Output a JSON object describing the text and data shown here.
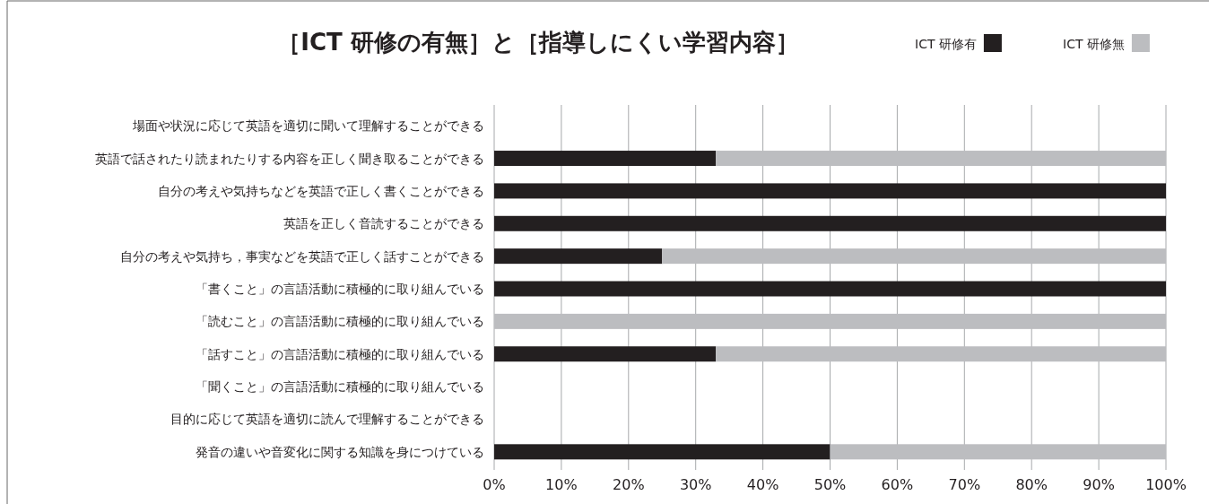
{
  "chart_data": {
    "type": "bar",
    "orientation": "horizontal",
    "stacked": true,
    "title": "［ICT 研修の有無］と［指導しにくい学習内容］",
    "categories": [
      "場面や状況に応じて英語を適切に聞いて理解することができる",
      "英語で話されたり読まれたりする内容を正しく聞き取ることができる",
      "自分の考えや気持ちなどを英語で正しく書くことができる",
      "英語を正しく音読することができる",
      "自分の考えや気持ち，事実などを英語で正しく話すことができる",
      "「書くこと」の言語活動に積極的に取り組んでいる",
      "「読むこと」の言語活動に積極的に取り組んでいる",
      "「話すこと」の言語活動に積極的に取り組んでいる",
      "「聞くこと」の言語活動に積極的に取り組んでいる",
      "目的に応じて英語を適切に読んで理解することができる",
      "発音の違いや音変化に関する知識を身につけている"
    ],
    "series": [
      {
        "name": "ICT 研修有",
        "color": "#231f20",
        "values": [
          null,
          33,
          100,
          100,
          25,
          100,
          0,
          33,
          null,
          null,
          50
        ]
      },
      {
        "name": "ICT 研修無",
        "color": "#bcbdc0",
        "values": [
          null,
          67,
          0,
          0,
          75,
          0,
          100,
          67,
          null,
          null,
          50
        ]
      }
    ],
    "xlim": [
      0,
      100
    ],
    "xticks": [
      {
        "value": 0,
        "label": "0%"
      },
      {
        "value": 10,
        "label": "10%"
      },
      {
        "value": 20,
        "label": "20%"
      },
      {
        "value": 30,
        "label": "30%"
      },
      {
        "value": 40,
        "label": "40%"
      },
      {
        "value": 50,
        "label": "50%"
      },
      {
        "value": 60,
        "label": "60%"
      },
      {
        "value": 70,
        "label": "70%"
      },
      {
        "value": 80,
        "label": "80%"
      },
      {
        "value": 90,
        "label": "90%"
      },
      {
        "value": 100,
        "label": "100%"
      }
    ],
    "grid": "x",
    "legend": "top right"
  }
}
